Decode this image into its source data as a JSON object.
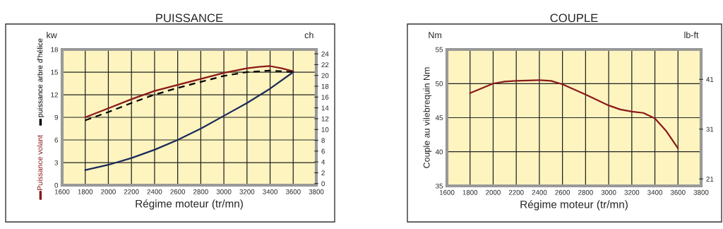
{
  "chart_data": [
    {
      "type": "line",
      "title": "PUISSANCE",
      "xlabel": "Régime moteur (tr/mn)",
      "y2label": "ch",
      "annotations": [
        "kw"
      ],
      "x": [
        1800,
        2000,
        2200,
        2400,
        2600,
        2800,
        3000,
        3200,
        3300,
        3400,
        3500,
        3600
      ],
      "series": [
        {
          "name": "Puissance volant",
          "color": "#8b1a1a",
          "line_style": "solid",
          "values": [
            9.0,
            10.2,
            11.4,
            12.5,
            13.3,
            14.1,
            14.9,
            15.5,
            15.7,
            15.8,
            15.5,
            15.1
          ]
        },
        {
          "name": "puissance arbre d'hélice",
          "color": "#000000",
          "line_style": "dashed",
          "x": [
            1800,
            2000,
            2200,
            2400,
            2600,
            2800,
            3000,
            3200,
            3400,
            3600
          ],
          "values": [
            8.6,
            9.7,
            10.9,
            12.0,
            12.9,
            13.7,
            14.5,
            15.0,
            15.2,
            15.0
          ]
        },
        {
          "color": "#1a2a5a",
          "line_style": "solid",
          "x": [
            1800,
            2000,
            2200,
            2400,
            2600,
            2800,
            3000,
            3200,
            3400,
            3600
          ],
          "values": [
            2.0,
            2.7,
            3.6,
            4.7,
            6.0,
            7.5,
            9.2,
            10.9,
            12.8,
            15.0
          ]
        }
      ],
      "xlim": [
        1600,
        3800
      ],
      "xticks": [
        1600,
        1800,
        2000,
        2200,
        2400,
        2600,
        2800,
        3000,
        3200,
        3400,
        3600,
        3800
      ],
      "ylim": [
        0,
        18
      ],
      "yticks": [
        0,
        3,
        6,
        9,
        12,
        15,
        18
      ],
      "y2lim": [
        -0.3,
        24.8
      ],
      "y2ticks": [
        0,
        2,
        4,
        6,
        8,
        10,
        12,
        14,
        16,
        18,
        20,
        22,
        24
      ],
      "grid": true,
      "legend": "left",
      "marker": "none"
    },
    {
      "type": "line",
      "title": "COUPLE",
      "xlabel": "Régime moteur (tr/mn)",
      "ylabel": "Couple au vilebrequin Nm",
      "y2label": "lb-ft",
      "annotations": [
        "Nm"
      ],
      "x": [
        1800,
        2000,
        2100,
        2200,
        2400,
        2500,
        2600,
        2800,
        3000,
        3100,
        3200,
        3300,
        3400,
        3500,
        3600
      ],
      "series": [
        {
          "color": "#8b1a1a",
          "line_style": "solid",
          "values": [
            48.6,
            50.0,
            50.3,
            50.4,
            50.5,
            50.4,
            49.9,
            48.4,
            46.8,
            46.2,
            45.9,
            45.7,
            44.9,
            43.0,
            40.5
          ]
        }
      ],
      "xlim": [
        1600,
        3800
      ],
      "xticks": [
        1600,
        1800,
        2000,
        2200,
        2400,
        2600,
        2800,
        3000,
        3200,
        3400,
        3600,
        3800
      ],
      "ylim": [
        35,
        55
      ],
      "yticks": [
        35,
        40,
        45,
        50,
        55
      ],
      "y2lim": [
        19.6,
        47.0
      ],
      "y2ticks": [
        21,
        31,
        41
      ],
      "grid": true,
      "marker": "none"
    }
  ]
}
